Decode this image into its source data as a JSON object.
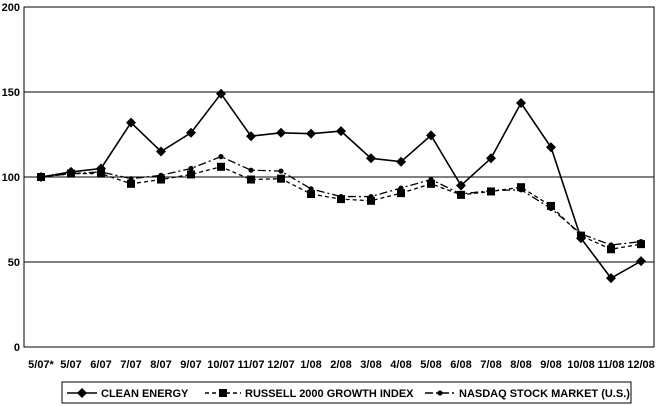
{
  "chart_data": {
    "type": "line",
    "title": "",
    "xlabel": "",
    "ylabel": "",
    "ylim": [
      0,
      200
    ],
    "yticks": [
      0,
      50,
      100,
      150,
      200
    ],
    "grid": "horizontal",
    "legend_position": "bottom",
    "categories": [
      "5/07*",
      "5/07",
      "6/07",
      "7/07",
      "8/07",
      "9/07",
      "10/07",
      "11/07",
      "12/07",
      "1/08",
      "2/08",
      "3/08",
      "4/08",
      "5/08",
      "6/08",
      "7/08",
      "8/08",
      "9/08",
      "10/08",
      "11/08",
      "12/08"
    ],
    "series": [
      {
        "name": "CLEAN ENERGY",
        "marker": "diamond",
        "line_style": "solid",
        "color": "#000000",
        "values": [
          100,
          103,
          105,
          132,
          115,
          126,
          149,
          124,
          126,
          125.5,
          127,
          111,
          109,
          124.5,
          95,
          111,
          143.5,
          117.5,
          64,
          40.5,
          50.5
        ]
      },
      {
        "name": "RUSSELL 2000 GROWTH INDEX",
        "marker": "square",
        "line_style": "dashed",
        "color": "#000000",
        "values": [
          100,
          102,
          102,
          96,
          98.5,
          101.5,
          106,
          98.5,
          99,
          90,
          87,
          86,
          90.5,
          96,
          89.5,
          91.5,
          94,
          83,
          65.5,
          57.5,
          60.5
        ]
      },
      {
        "name": "NASDAQ STOCK MARKET (U.S.)",
        "marker": "circle",
        "line_style": "dashdot",
        "color": "#000000",
        "values": [
          100,
          102,
          103,
          99,
          101,
          105,
          112,
          104,
          103.5,
          93,
          88.5,
          88.5,
          93.5,
          98.5,
          90,
          92,
          92.5,
          81.5,
          66.5,
          60,
          62
        ]
      }
    ]
  }
}
